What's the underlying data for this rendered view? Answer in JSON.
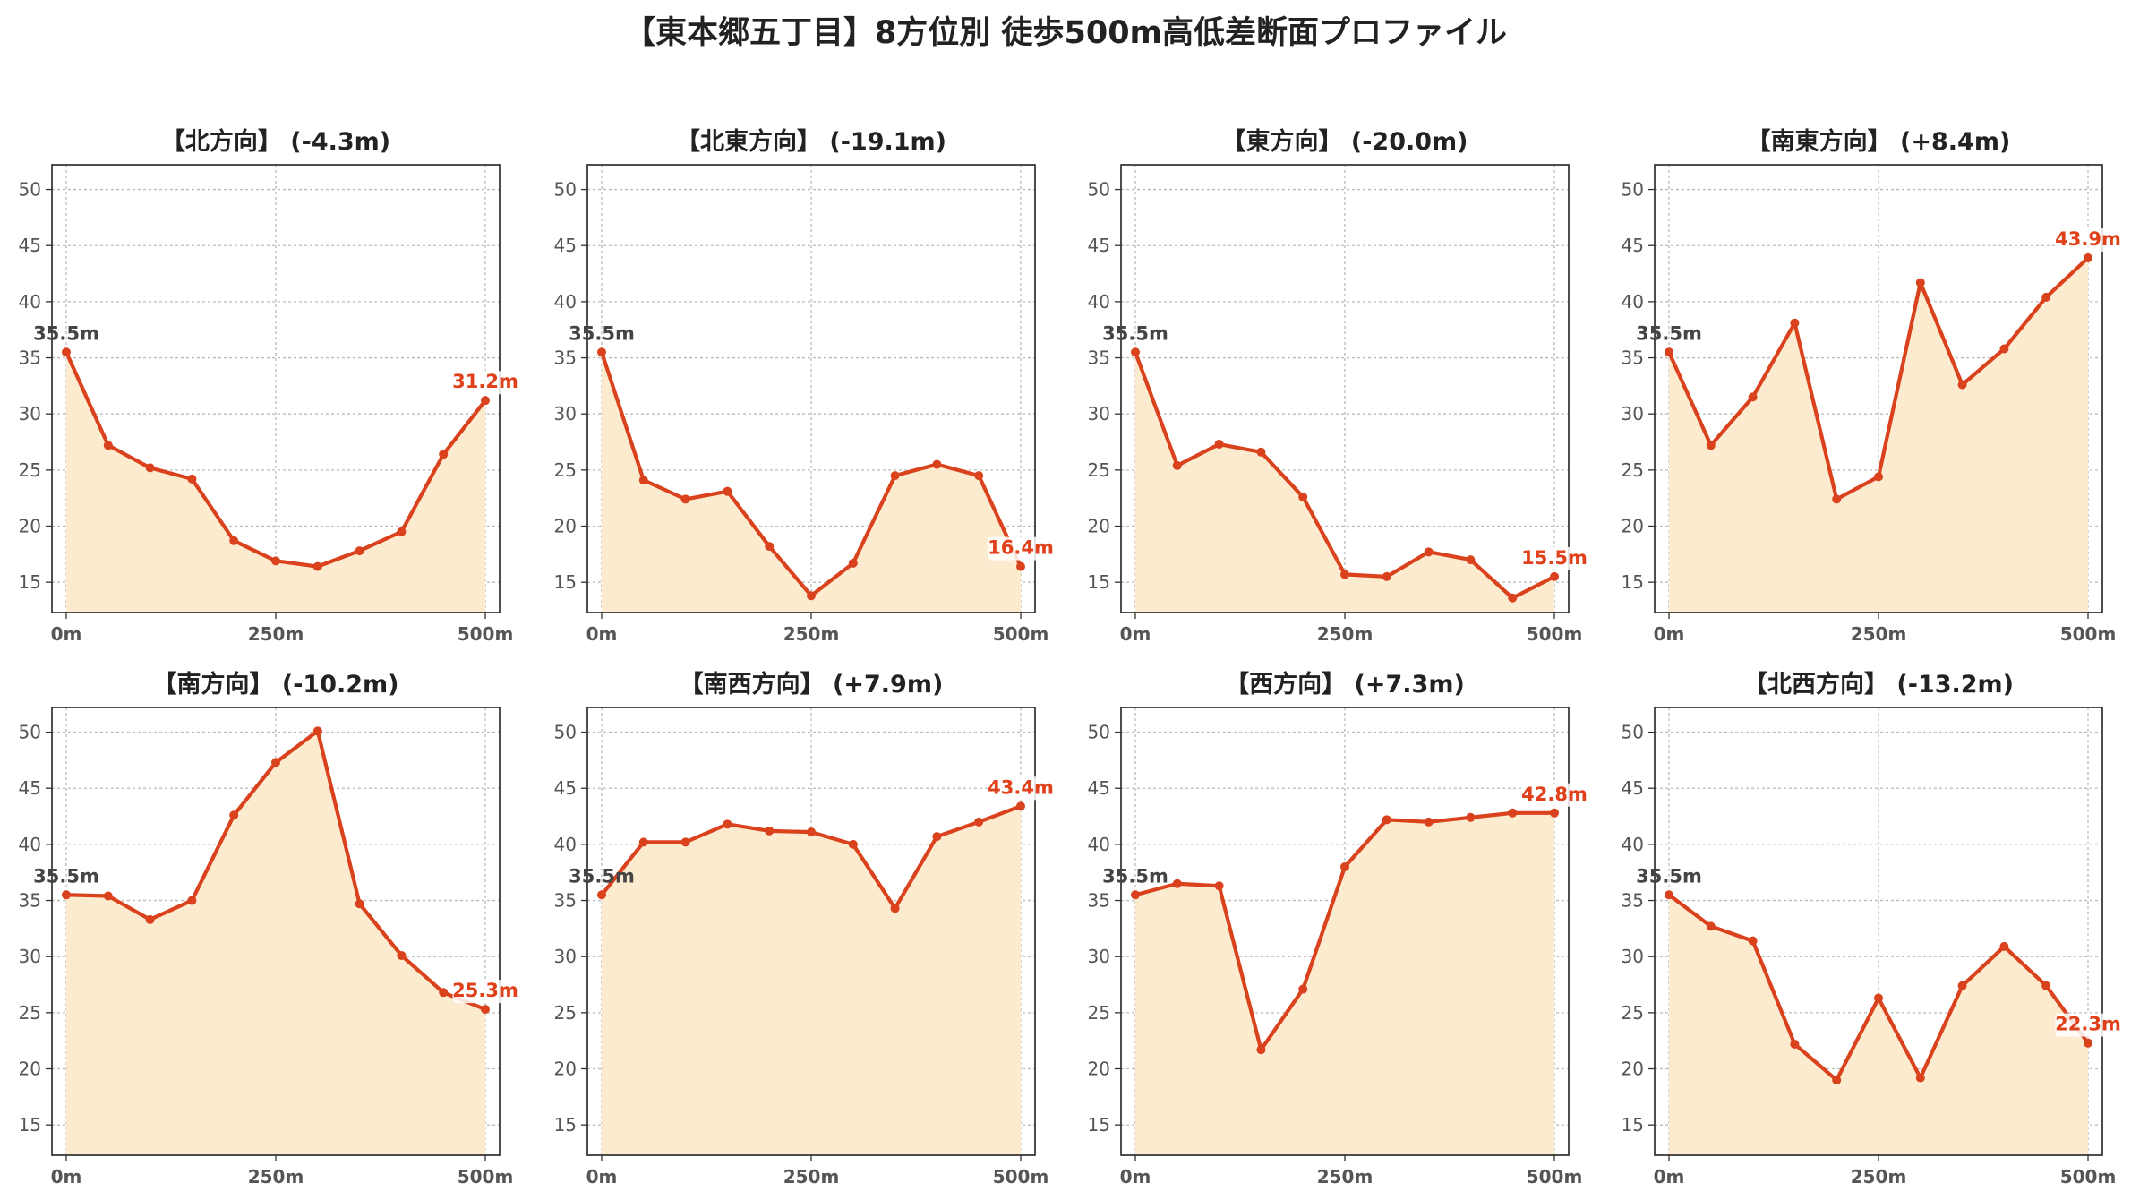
{
  "title": "【東本郷五丁目】8方位別 徒歩500m高低差断面プロファイル",
  "colors": {
    "line": "#d9421c",
    "fill": "#fdebd0",
    "end_label": "#e0401a",
    "start_label": "#444444"
  },
  "chart_data": [
    {
      "type": "area",
      "title": "【北方向】 (-4.3m)",
      "x": [
        0,
        50,
        100,
        150,
        200,
        250,
        300,
        350,
        400,
        450,
        500
      ],
      "x_ticks": [
        "0m",
        "250m",
        "500m"
      ],
      "y_ticks": [
        15,
        20,
        25,
        30,
        35,
        40,
        45,
        50
      ],
      "ylim": [
        12.3,
        52.2
      ],
      "grid": true,
      "values": [
        35.5,
        27.2,
        25.2,
        24.2,
        18.7,
        16.9,
        16.4,
        17.8,
        19.5,
        26.4,
        31.2
      ],
      "start_label": "35.5m",
      "end_label": "31.2m"
    },
    {
      "type": "area",
      "title": "【北東方向】 (-19.1m)",
      "x": [
        0,
        50,
        100,
        150,
        200,
        250,
        300,
        350,
        400,
        450,
        500
      ],
      "x_ticks": [
        "0m",
        "250m",
        "500m"
      ],
      "y_ticks": [
        15,
        20,
        25,
        30,
        35,
        40,
        45,
        50
      ],
      "ylim": [
        12.3,
        52.2
      ],
      "grid": true,
      "values": [
        35.5,
        24.1,
        22.4,
        23.1,
        18.2,
        13.8,
        16.7,
        24.5,
        25.5,
        24.5,
        16.4
      ],
      "start_label": "35.5m",
      "end_label": "16.4m"
    },
    {
      "type": "area",
      "title": "【東方向】 (-20.0m)",
      "x": [
        0,
        50,
        100,
        150,
        200,
        250,
        300,
        350,
        400,
        450,
        500
      ],
      "x_ticks": [
        "0m",
        "250m",
        "500m"
      ],
      "y_ticks": [
        15,
        20,
        25,
        30,
        35,
        40,
        45,
        50
      ],
      "ylim": [
        12.3,
        52.2
      ],
      "grid": true,
      "values": [
        35.5,
        25.4,
        27.3,
        26.6,
        22.6,
        15.7,
        15.5,
        17.7,
        17.0,
        13.6,
        15.5
      ],
      "start_label": "35.5m",
      "end_label": "15.5m"
    },
    {
      "type": "area",
      "title": "【南東方向】 (+8.4m)",
      "x": [
        0,
        50,
        100,
        150,
        200,
        250,
        300,
        350,
        400,
        450,
        500
      ],
      "x_ticks": [
        "0m",
        "250m",
        "500m"
      ],
      "y_ticks": [
        15,
        20,
        25,
        30,
        35,
        40,
        45,
        50
      ],
      "ylim": [
        12.3,
        52.2
      ],
      "grid": true,
      "values": [
        35.5,
        27.2,
        31.5,
        38.1,
        22.4,
        24.4,
        41.7,
        32.6,
        35.8,
        40.4,
        43.9
      ],
      "start_label": "35.5m",
      "end_label": "43.9m"
    },
    {
      "type": "area",
      "title": "【南方向】 (-10.2m)",
      "x": [
        0,
        50,
        100,
        150,
        200,
        250,
        300,
        350,
        400,
        450,
        500
      ],
      "x_ticks": [
        "0m",
        "250m",
        "500m"
      ],
      "y_ticks": [
        15,
        20,
        25,
        30,
        35,
        40,
        45,
        50
      ],
      "ylim": [
        12.3,
        52.2
      ],
      "grid": true,
      "values": [
        35.5,
        35.4,
        33.3,
        35.0,
        42.6,
        47.3,
        50.1,
        34.7,
        30.1,
        26.8,
        25.3
      ],
      "start_label": "35.5m",
      "end_label": "25.3m"
    },
    {
      "type": "area",
      "title": "【南西方向】 (+7.9m)",
      "x": [
        0,
        50,
        100,
        150,
        200,
        250,
        300,
        350,
        400,
        450,
        500
      ],
      "x_ticks": [
        "0m",
        "250m",
        "500m"
      ],
      "y_ticks": [
        15,
        20,
        25,
        30,
        35,
        40,
        45,
        50
      ],
      "ylim": [
        12.3,
        52.2
      ],
      "grid": true,
      "values": [
        35.5,
        40.2,
        40.2,
        41.8,
        41.2,
        41.1,
        40.0,
        34.3,
        40.7,
        42.0,
        43.4
      ],
      "start_label": "35.5m",
      "end_label": "43.4m"
    },
    {
      "type": "area",
      "title": "【西方向】 (+7.3m)",
      "x": [
        0,
        50,
        100,
        150,
        200,
        250,
        300,
        350,
        400,
        450,
        500
      ],
      "x_ticks": [
        "0m",
        "250m",
        "500m"
      ],
      "y_ticks": [
        15,
        20,
        25,
        30,
        35,
        40,
        45,
        50
      ],
      "ylim": [
        12.3,
        52.2
      ],
      "grid": true,
      "values": [
        35.5,
        36.5,
        36.3,
        21.7,
        27.1,
        38.0,
        42.2,
        42.0,
        42.4,
        42.8,
        42.8
      ],
      "start_label": "35.5m",
      "end_label": "42.8m"
    },
    {
      "type": "area",
      "title": "【北西方向】 (-13.2m)",
      "x": [
        0,
        50,
        100,
        150,
        200,
        250,
        300,
        350,
        400,
        450,
        500
      ],
      "x_ticks": [
        "0m",
        "250m",
        "500m"
      ],
      "y_ticks": [
        15,
        20,
        25,
        30,
        35,
        40,
        45,
        50
      ],
      "ylim": [
        12.3,
        52.2
      ],
      "grid": true,
      "values": [
        35.5,
        32.7,
        31.4,
        22.2,
        19.0,
        26.3,
        19.2,
        27.4,
        30.9,
        27.4,
        22.3
      ],
      "start_label": "35.5m",
      "end_label": "22.3m"
    }
  ]
}
